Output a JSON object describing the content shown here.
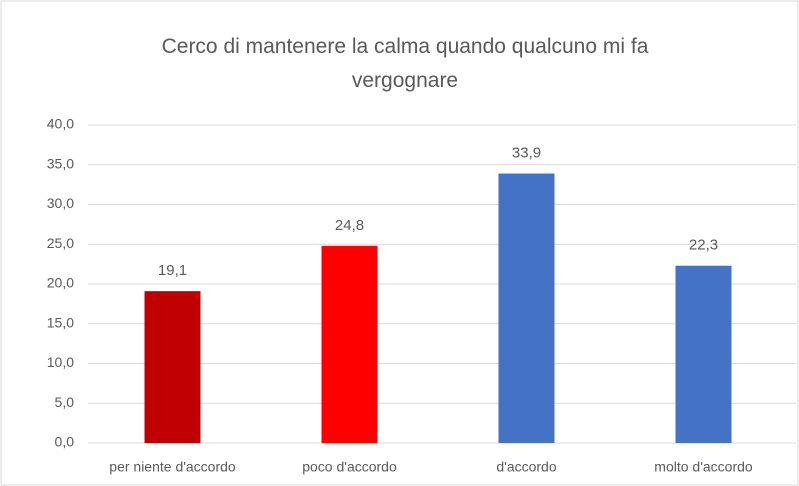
{
  "chart_data": {
    "type": "bar",
    "title": "Cerco di mantenere la calma quando qualcuno mi fa vergognare",
    "categories": [
      "per niente d'accordo",
      "poco d'accordo",
      "d'accordo",
      "molto d'accordo"
    ],
    "values": [
      19.1,
      24.8,
      33.9,
      22.3
    ],
    "value_labels": [
      "19,1",
      "24,8",
      "33,9",
      "22,3"
    ],
    "colors": [
      "#c00000",
      "#ff0000",
      "#4472c4",
      "#4472c4"
    ],
    "ylim": [
      0,
      40
    ],
    "yticks": [
      {
        "value": 0,
        "label": "0,0"
      },
      {
        "value": 5,
        "label": "5,0"
      },
      {
        "value": 10,
        "label": "10,0"
      },
      {
        "value": 15,
        "label": "15,0"
      },
      {
        "value": 20,
        "label": "20,0"
      },
      {
        "value": 25,
        "label": "25,0"
      },
      {
        "value": 30,
        "label": "30,0"
      },
      {
        "value": 35,
        "label": "35,0"
      },
      {
        "value": 40,
        "label": "40,0"
      }
    ],
    "grid": true
  }
}
